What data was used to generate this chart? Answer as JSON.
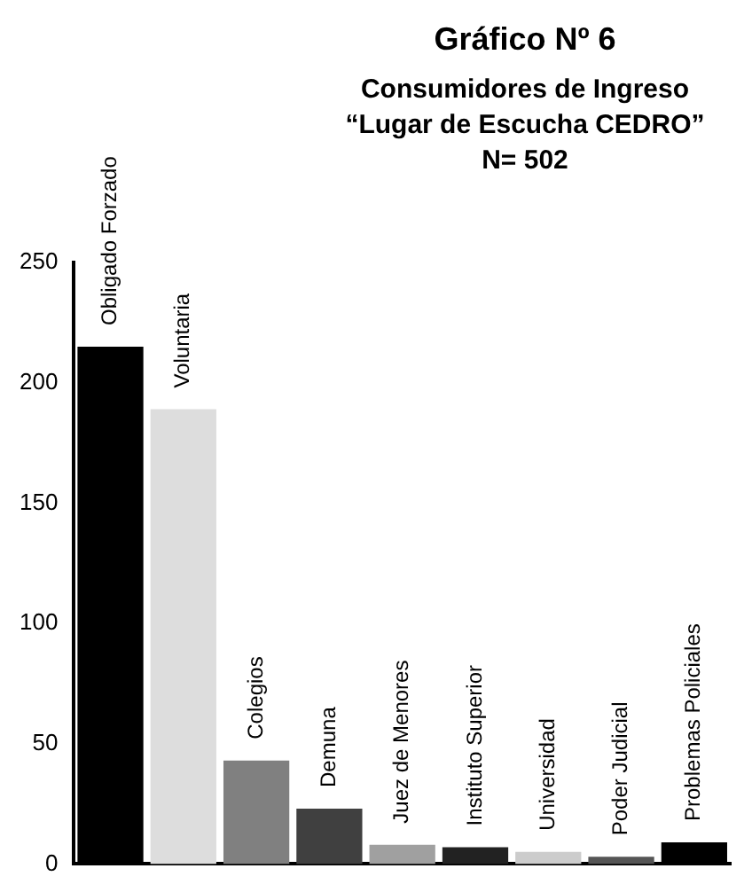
{
  "chart_data": {
    "type": "bar",
    "title": "Gráfico Nº 6",
    "subtitle": "Consumidores de Ingreso\n“Lugar de Escucha CEDRO”\nN= 502",
    "categories": [
      "Obligado Forzado",
      "Voluntaria",
      "Colegios",
      "Demuna",
      "Juez de Menores",
      "Instituto Superior",
      "Universidad",
      "Poder Judicial",
      "Problemas Policiales"
    ],
    "values": [
      215,
      189,
      43,
      23,
      8,
      7,
      5,
      3,
      9
    ],
    "colors": [
      "#000000",
      "#dddddd",
      "#808080",
      "#404040",
      "#a0a0a0",
      "#222222",
      "#cccccc",
      "#555555",
      "#000000"
    ],
    "ylim": [
      0,
      250
    ],
    "yticks": [
      0,
      50,
      100,
      150,
      200,
      250
    ],
    "grid": false,
    "legend": false,
    "tick_labels": "y"
  }
}
